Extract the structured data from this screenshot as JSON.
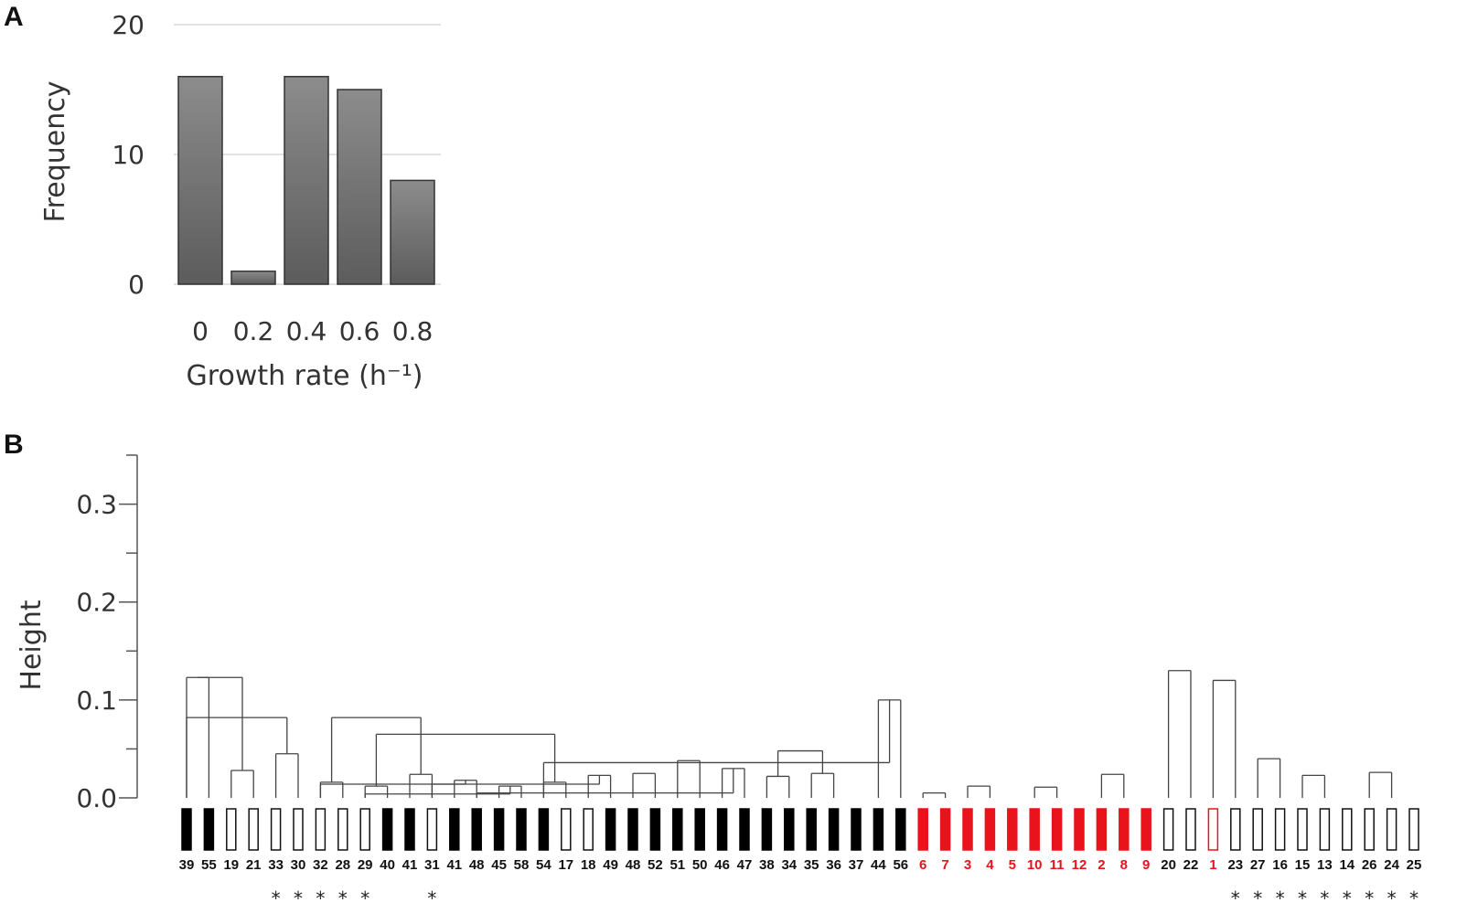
{
  "panel_a_label": "A",
  "panel_b_label": "B",
  "chart_data": [
    {
      "type": "bar",
      "categories": [
        "0",
        "0.2",
        "0.4",
        "0.6",
        "0.8"
      ],
      "values": [
        16,
        1,
        16,
        15,
        8
      ],
      "ylim": [
        0,
        20
      ],
      "yticks": [
        "0",
        "10",
        "20"
      ],
      "xlabel": "Growth rate (h⁻¹)",
      "ylabel": "Frequency",
      "grid": true,
      "bar_color": "#6f6f6f"
    },
    {
      "type": "dendrogram",
      "ylabel": "Height",
      "ylim": [
        0,
        0.35
      ],
      "yticks": [
        "0.0",
        "0.1",
        "0.2",
        "0.3"
      ],
      "leaves": [
        {
          "label": "39",
          "fill": "black",
          "star": false
        },
        {
          "label": "55",
          "fill": "black",
          "star": false
        },
        {
          "label": "19",
          "fill": "white",
          "star": false
        },
        {
          "label": "21",
          "fill": "white",
          "star": false
        },
        {
          "label": "33",
          "fill": "white",
          "star": true
        },
        {
          "label": "30",
          "fill": "white",
          "star": true
        },
        {
          "label": "32",
          "fill": "white",
          "star": true
        },
        {
          "label": "28",
          "fill": "white",
          "star": true
        },
        {
          "label": "29",
          "fill": "white",
          "star": true
        },
        {
          "label": "40",
          "fill": "black",
          "star": false
        },
        {
          "label": "41",
          "fill": "black",
          "star": false
        },
        {
          "label": "31",
          "fill": "white",
          "star": true
        },
        {
          "label": "41",
          "fill": "black",
          "star": false
        },
        {
          "label": "48",
          "fill": "black",
          "star": false
        },
        {
          "label": "45",
          "fill": "black",
          "star": false
        },
        {
          "label": "58",
          "fill": "black",
          "star": false
        },
        {
          "label": "54",
          "fill": "black",
          "star": false
        },
        {
          "label": "17",
          "fill": "white",
          "star": false
        },
        {
          "label": "18",
          "fill": "white",
          "star": false
        },
        {
          "label": "49",
          "fill": "black",
          "star": false
        },
        {
          "label": "48",
          "fill": "black",
          "star": false
        },
        {
          "label": "52",
          "fill": "black",
          "star": false
        },
        {
          "label": "51",
          "fill": "black",
          "star": false
        },
        {
          "label": "50",
          "fill": "black",
          "star": false
        },
        {
          "label": "46",
          "fill": "black",
          "star": false
        },
        {
          "label": "47",
          "fill": "black",
          "star": false
        },
        {
          "label": "38",
          "fill": "black",
          "star": false
        },
        {
          "label": "34",
          "fill": "black",
          "star": false
        },
        {
          "label": "35",
          "fill": "black",
          "star": false
        },
        {
          "label": "36",
          "fill": "black",
          "star": false
        },
        {
          "label": "37",
          "fill": "black",
          "star": false
        },
        {
          "label": "44",
          "fill": "black",
          "star": false
        },
        {
          "label": "56",
          "fill": "black",
          "star": false
        },
        {
          "label": "6",
          "fill": "red",
          "star": false
        },
        {
          "label": "7",
          "fill": "red",
          "star": false
        },
        {
          "label": "3",
          "fill": "red",
          "star": false
        },
        {
          "label": "4",
          "fill": "red",
          "star": false
        },
        {
          "label": "5",
          "fill": "red",
          "star": false
        },
        {
          "label": "10",
          "fill": "red",
          "star": false
        },
        {
          "label": "11",
          "fill": "red",
          "star": false
        },
        {
          "label": "12",
          "fill": "red",
          "star": false
        },
        {
          "label": "2",
          "fill": "red",
          "star": false
        },
        {
          "label": "8",
          "fill": "red",
          "star": false
        },
        {
          "label": "9",
          "fill": "red",
          "star": false
        },
        {
          "label": "20",
          "fill": "white",
          "star": false
        },
        {
          "label": "22",
          "fill": "white",
          "star": false
        },
        {
          "label": "1",
          "fill": "red-outline",
          "star": false
        },
        {
          "label": "23",
          "fill": "white",
          "star": true
        },
        {
          "label": "27",
          "fill": "white",
          "star": true
        },
        {
          "label": "16",
          "fill": "white",
          "star": true
        },
        {
          "label": "15",
          "fill": "white",
          "star": true
        },
        {
          "label": "13",
          "fill": "white",
          "star": true
        },
        {
          "label": "14",
          "fill": "white",
          "star": true
        },
        {
          "label": "26",
          "fill": "white",
          "star": true
        },
        {
          "label": "24",
          "fill": "white",
          "star": true
        },
        {
          "label": "25",
          "fill": "white",
          "star": true
        }
      ],
      "star_symbol": "*",
      "merges": [
        [
          0,
          1,
          0.123
        ],
        [
          2,
          3,
          0.028
        ],
        [
          4,
          5,
          0.045
        ],
        [
          6,
          7,
          0.016
        ],
        [
          8,
          9,
          0.012
        ],
        [
          10,
          11,
          0.024
        ],
        [
          12,
          13,
          0.018
        ],
        [
          14,
          15,
          0.012
        ],
        [
          16,
          17,
          0.016
        ],
        [
          18,
          19,
          0.023
        ],
        [
          20,
          21,
          0.025
        ],
        [
          22,
          23,
          0.038
        ],
        [
          24,
          25,
          0.03
        ],
        [
          26,
          27,
          0.022
        ],
        [
          28,
          29,
          0.025
        ],
        [
          31,
          32,
          0.1
        ],
        [
          33,
          34,
          0.005
        ],
        [
          35,
          36,
          0.012
        ],
        [
          38,
          39,
          0.011
        ],
        [
          41,
          42,
          0.024
        ],
        [
          44,
          45,
          0.13
        ],
        [
          46,
          47,
          0.12
        ],
        [
          48,
          49,
          0.04
        ],
        [
          50,
          51,
          0.023
        ],
        [
          53,
          54,
          0.026
        ],
        [
          "n2",
          0,
          0.082
        ],
        [
          "n6",
          6,
          0.014
        ],
        [
          "n7",
          8,
          0.004
        ],
        [
          "n9",
          11,
          0.014
        ],
        [
          "n12",
          13,
          0.005
        ],
        [
          "n15",
          16,
          0.036
        ],
        [
          "n13",
          "n14",
          0.048
        ],
        [
          "n4",
          "n8",
          0.065
        ],
        [
          "n3",
          "n5",
          0.082
        ],
        [
          "n0",
          "n1",
          0.123
        ]
      ]
    }
  ]
}
